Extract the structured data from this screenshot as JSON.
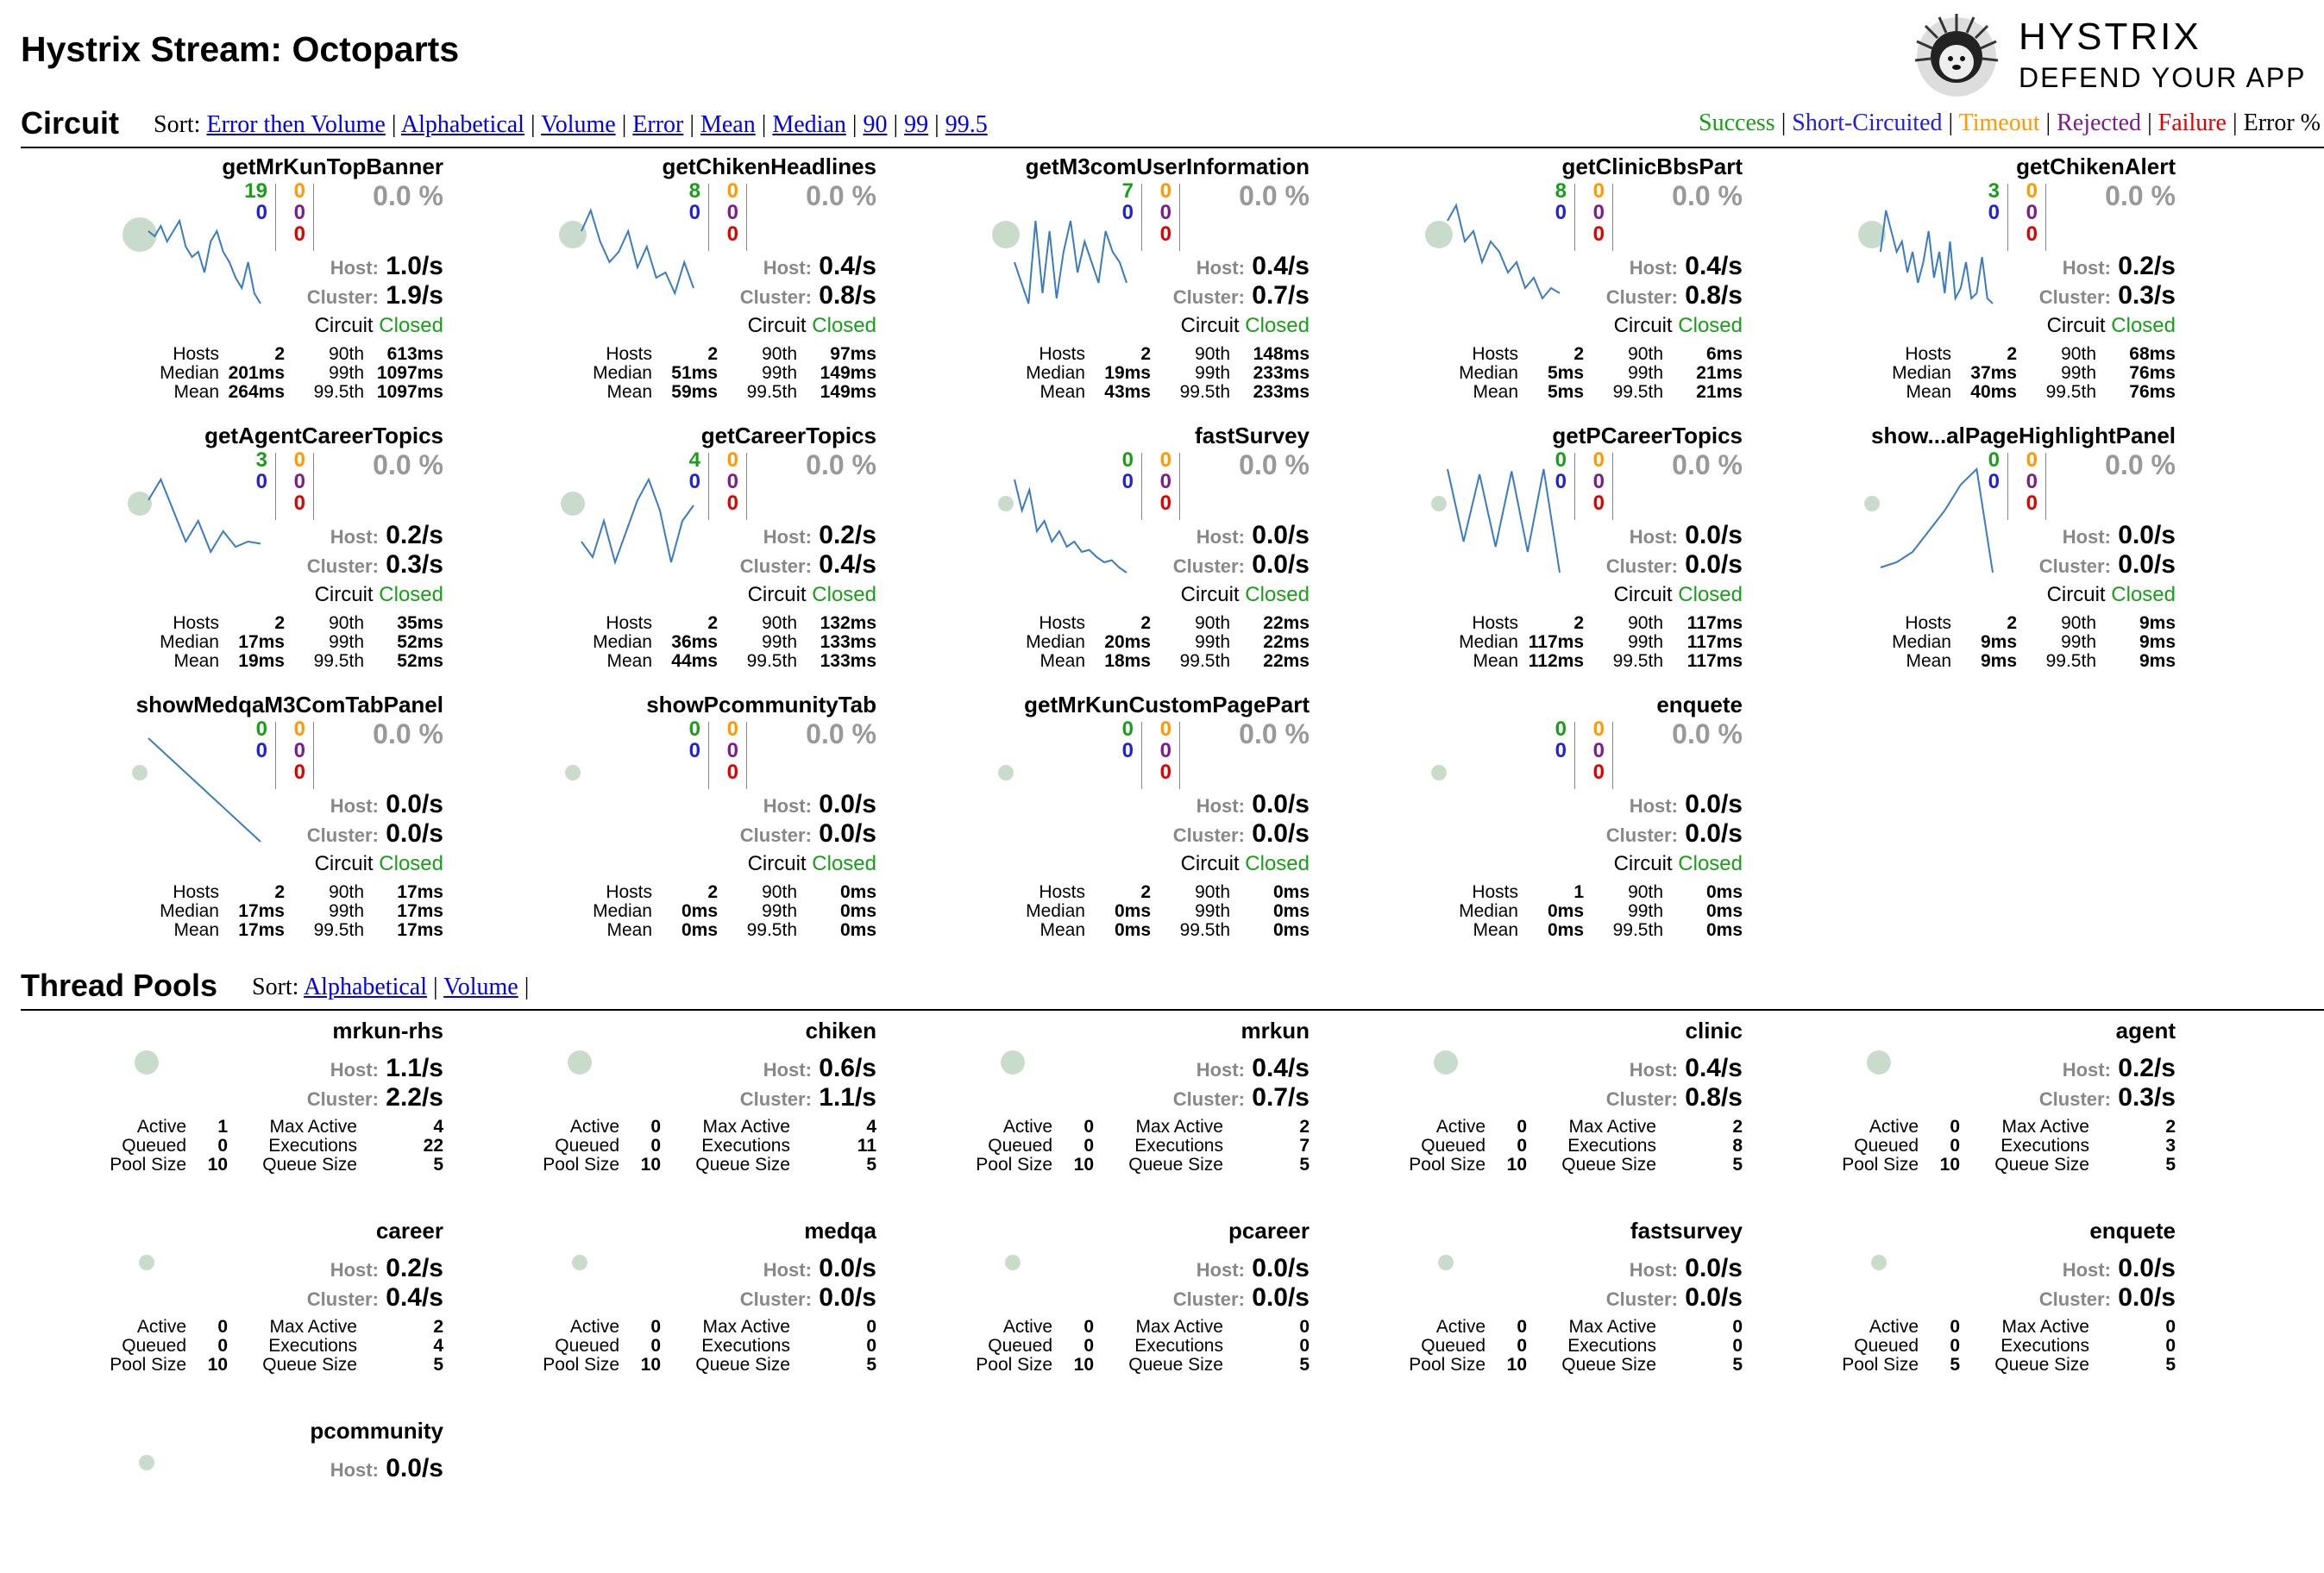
{
  "page_title": "Hystrix Stream: Octoparts",
  "logo": {
    "line1": "HYSTRIX",
    "line2": "DEFEND YOUR APP"
  },
  "circuit_section": {
    "heading": "Circuit",
    "sort_label": "Sort:",
    "sort_options": [
      "Error then Volume",
      "Alphabetical",
      "Volume",
      "Error",
      "Mean",
      "Median",
      "90",
      "99",
      "99.5"
    ],
    "legend": [
      {
        "label": "Success",
        "color": "#1a9e1a"
      },
      {
        "label": "Short-Circuited",
        "color": "#2020dd"
      },
      {
        "label": "Timeout",
        "color": "#ff9900"
      },
      {
        "label": "Rejected",
        "color": "#7b1e8c"
      },
      {
        "label": "Failure",
        "color": "#e00000"
      },
      {
        "label": "Error %",
        "color": "#000000"
      }
    ]
  },
  "labels": {
    "host": "Host:",
    "cluster": "Cluster:",
    "circuit": "Circuit",
    "hosts": "Hosts",
    "median": "Median",
    "mean": "Mean",
    "p90": "90th",
    "p99": "99th",
    "p995": "99.5th",
    "active": "Active",
    "queued": "Queued",
    "pool_size": "Pool Size",
    "max_active": "Max Active",
    "executions": "Executions",
    "queue_size": "Queue Size"
  },
  "circuits": [
    {
      "name": "getMrKunTopBanner",
      "success": "19",
      "short": "0",
      "timeout": "0",
      "rejected": "0",
      "failure": "0",
      "err": "0.0 %",
      "host": "1.0/s",
      "cluster": "1.9/s",
      "status": "Closed",
      "hosts": "2",
      "median": "201ms",
      "mean": "264ms",
      "p90": "613ms",
      "p99": "1097ms",
      "p995": "1097ms",
      "bubble": "large",
      "spark": [
        0.3,
        0.35,
        0.25,
        0.4,
        0.3,
        0.2,
        0.45,
        0.55,
        0.5,
        0.7,
        0.4,
        0.3,
        0.5,
        0.6,
        0.75,
        0.85,
        0.6,
        0.9,
        1.0
      ]
    },
    {
      "name": "getChikenHeadlines",
      "success": "8",
      "short": "0",
      "timeout": "0",
      "rejected": "0",
      "failure": "0",
      "err": "0.0 %",
      "host": "0.4/s",
      "cluster": "0.8/s",
      "status": "Closed",
      "hosts": "2",
      "median": "51ms",
      "mean": "59ms",
      "p90": "97ms",
      "p99": "149ms",
      "p995": "149ms",
      "bubble": "medium",
      "spark": [
        0.3,
        0.1,
        0.4,
        0.6,
        0.5,
        0.3,
        0.65,
        0.45,
        0.75,
        0.7,
        0.9,
        0.6,
        0.85
      ]
    },
    {
      "name": "getM3comUserInformation",
      "success": "7",
      "short": "0",
      "timeout": "0",
      "rejected": "0",
      "failure": "0",
      "err": "0.0 %",
      "host": "0.4/s",
      "cluster": "0.7/s",
      "status": "Closed",
      "hosts": "2",
      "median": "19ms",
      "mean": "43ms",
      "p90": "148ms",
      "p99": "233ms",
      "p995": "233ms",
      "bubble": "medium",
      "spark": [
        0.6,
        0.8,
        1.0,
        0.2,
        0.9,
        0.3,
        0.95,
        0.5,
        0.2,
        0.7,
        0.4,
        0.6,
        0.8,
        0.3,
        0.5,
        0.6,
        0.8
      ]
    },
    {
      "name": "getClinicBbsPart",
      "success": "8",
      "short": "0",
      "timeout": "0",
      "rejected": "0",
      "failure": "0",
      "err": "0.0 %",
      "host": "0.4/s",
      "cluster": "0.8/s",
      "status": "Closed",
      "hosts": "2",
      "median": "5ms",
      "mean": "5ms",
      "p90": "6ms",
      "p99": "21ms",
      "p995": "21ms",
      "bubble": "medium",
      "spark": [
        0.2,
        0.05,
        0.4,
        0.3,
        0.6,
        0.4,
        0.5,
        0.7,
        0.6,
        0.85,
        0.75,
        0.95,
        0.85,
        0.9
      ]
    },
    {
      "name": "getChikenAlert",
      "success": "3",
      "short": "0",
      "timeout": "0",
      "rejected": "0",
      "failure": "0",
      "err": "0.0 %",
      "host": "0.2/s",
      "cluster": "0.3/s",
      "status": "Closed",
      "hosts": "2",
      "median": "37ms",
      "mean": "40ms",
      "p90": "68ms",
      "p99": "76ms",
      "p995": "76ms",
      "bubble": "medium",
      "spark": [
        0.5,
        0.1,
        0.3,
        0.5,
        0.4,
        0.7,
        0.5,
        0.8,
        0.6,
        0.3,
        0.75,
        0.5,
        0.9,
        0.4,
        0.95,
        0.85,
        0.6,
        0.95,
        0.9,
        0.55,
        0.95,
        1.0
      ]
    },
    {
      "name": "getAgentCareerTopics",
      "success": "3",
      "short": "0",
      "timeout": "0",
      "rejected": "0",
      "failure": "0",
      "err": "0.0 %",
      "host": "0.2/s",
      "cluster": "0.3/s",
      "status": "Closed",
      "hosts": "2",
      "median": "17ms",
      "mean": "19ms",
      "p90": "35ms",
      "p99": "52ms",
      "p995": "52ms",
      "bubble": "small",
      "spark": [
        0.3,
        0.1,
        0.4,
        0.7,
        0.5,
        0.8,
        0.6,
        0.75,
        0.7,
        0.72
      ]
    },
    {
      "name": "getCareerTopics",
      "success": "4",
      "short": "0",
      "timeout": "0",
      "rejected": "0",
      "failure": "0",
      "err": "0.0 %",
      "host": "0.2/s",
      "cluster": "0.4/s",
      "status": "Closed",
      "hosts": "2",
      "median": "36ms",
      "mean": "44ms",
      "p90": "132ms",
      "p99": "133ms",
      "p995": "133ms",
      "bubble": "small",
      "spark": [
        0.7,
        0.85,
        0.5,
        0.9,
        0.6,
        0.3,
        0.1,
        0.4,
        0.9,
        0.5,
        0.35
      ]
    },
    {
      "name": "fastSurvey",
      "success": "0",
      "short": "0",
      "timeout": "0",
      "rejected": "0",
      "failure": "0",
      "err": "0.0 %",
      "host": "0.0/s",
      "cluster": "0.0/s",
      "status": "Closed",
      "hosts": "2",
      "median": "20ms",
      "mean": "18ms",
      "p90": "22ms",
      "p99": "22ms",
      "p995": "22ms",
      "bubble": "tiny",
      "spark": [
        0.1,
        0.4,
        0.2,
        0.6,
        0.5,
        0.7,
        0.6,
        0.75,
        0.7,
        0.8,
        0.78,
        0.85,
        0.9,
        0.88,
        0.95,
        1.0
      ]
    },
    {
      "name": "getPCareerTopics",
      "success": "0",
      "short": "0",
      "timeout": "0",
      "rejected": "0",
      "failure": "0",
      "err": "0.0 %",
      "host": "0.0/s",
      "cluster": "0.0/s",
      "status": "Closed",
      "hosts": "2",
      "median": "117ms",
      "mean": "112ms",
      "p90": "117ms",
      "p99": "117ms",
      "p995": "117ms",
      "bubble": "tiny",
      "spark": [
        0.0,
        0.7,
        0.05,
        0.75,
        0.02,
        0.8,
        0.0,
        1.0
      ]
    },
    {
      "name": "show...alPageHighlightPanel",
      "success": "0",
      "short": "0",
      "timeout": "0",
      "rejected": "0",
      "failure": "0",
      "err": "0.0 %",
      "host": "0.0/s",
      "cluster": "0.0/s",
      "status": "Closed",
      "hosts": "2",
      "median": "9ms",
      "mean": "9ms",
      "p90": "9ms",
      "p99": "9ms",
      "p995": "9ms",
      "bubble": "tiny",
      "spark": [
        0.95,
        0.9,
        0.8,
        0.6,
        0.4,
        0.15,
        0.0,
        1.0
      ]
    },
    {
      "name": "showMedqaM3ComTabPanel",
      "success": "0",
      "short": "0",
      "timeout": "0",
      "rejected": "0",
      "failure": "0",
      "err": "0.0 %",
      "host": "0.0/s",
      "cluster": "0.0/s",
      "status": "Closed",
      "hosts": "2",
      "median": "17ms",
      "mean": "17ms",
      "p90": "17ms",
      "p99": "17ms",
      "p995": "17ms",
      "bubble": "tiny",
      "spark": [
        0.0,
        1.0
      ]
    },
    {
      "name": "showPcommunityTab",
      "success": "0",
      "short": "0",
      "timeout": "0",
      "rejected": "0",
      "failure": "0",
      "err": "0.0 %",
      "host": "0.0/s",
      "cluster": "0.0/s",
      "status": "Closed",
      "hosts": "2",
      "median": "0ms",
      "mean": "0ms",
      "p90": "0ms",
      "p99": "0ms",
      "p995": "0ms",
      "bubble": "tiny",
      "spark": []
    },
    {
      "name": "getMrKunCustomPagePart",
      "success": "0",
      "short": "0",
      "timeout": "0",
      "rejected": "0",
      "failure": "0",
      "err": "0.0 %",
      "host": "0.0/s",
      "cluster": "0.0/s",
      "status": "Closed",
      "hosts": "2",
      "median": "0ms",
      "mean": "0ms",
      "p90": "0ms",
      "p99": "0ms",
      "p995": "0ms",
      "bubble": "tiny",
      "spark": []
    },
    {
      "name": "enquete",
      "success": "0",
      "short": "0",
      "timeout": "0",
      "rejected": "0",
      "failure": "0",
      "err": "0.0 %",
      "host": "0.0/s",
      "cluster": "0.0/s",
      "status": "Closed",
      "hosts": "1",
      "median": "0ms",
      "mean": "0ms",
      "p90": "0ms",
      "p99": "0ms",
      "p995": "0ms",
      "bubble": "tiny",
      "spark": []
    }
  ],
  "thread_section": {
    "heading": "Thread Pools",
    "sort_label": "Sort:",
    "sort_options": [
      "Alphabetical",
      "Volume"
    ]
  },
  "pools": [
    {
      "name": "mrkun-rhs",
      "host": "1.1/s",
      "cluster": "2.2/s",
      "active": "1",
      "queued": "0",
      "pool_size": "10",
      "max_active": "4",
      "executions": "22",
      "queue_size": "5",
      "bubble": "small"
    },
    {
      "name": "chiken",
      "host": "0.6/s",
      "cluster": "1.1/s",
      "active": "0",
      "queued": "0",
      "pool_size": "10",
      "max_active": "4",
      "executions": "11",
      "queue_size": "5",
      "bubble": "small"
    },
    {
      "name": "mrkun",
      "host": "0.4/s",
      "cluster": "0.7/s",
      "active": "0",
      "queued": "0",
      "pool_size": "10",
      "max_active": "2",
      "executions": "7",
      "queue_size": "5",
      "bubble": "small"
    },
    {
      "name": "clinic",
      "host": "0.4/s",
      "cluster": "0.8/s",
      "active": "0",
      "queued": "0",
      "pool_size": "10",
      "max_active": "2",
      "executions": "8",
      "queue_size": "5",
      "bubble": "small"
    },
    {
      "name": "agent",
      "host": "0.2/s",
      "cluster": "0.3/s",
      "active": "0",
      "queued": "0",
      "pool_size": "10",
      "max_active": "2",
      "executions": "3",
      "queue_size": "5",
      "bubble": "small"
    },
    {
      "name": "career",
      "host": "0.2/s",
      "cluster": "0.4/s",
      "active": "0",
      "queued": "0",
      "pool_size": "10",
      "max_active": "2",
      "executions": "4",
      "queue_size": "5",
      "bubble": "tiny"
    },
    {
      "name": "medqa",
      "host": "0.0/s",
      "cluster": "0.0/s",
      "active": "0",
      "queued": "0",
      "pool_size": "10",
      "max_active": "0",
      "executions": "0",
      "queue_size": "5",
      "bubble": "tiny"
    },
    {
      "name": "pcareer",
      "host": "0.0/s",
      "cluster": "0.0/s",
      "active": "0",
      "queued": "0",
      "pool_size": "10",
      "max_active": "0",
      "executions": "0",
      "queue_size": "5",
      "bubble": "tiny"
    },
    {
      "name": "fastsurvey",
      "host": "0.0/s",
      "cluster": "0.0/s",
      "active": "0",
      "queued": "0",
      "pool_size": "10",
      "max_active": "0",
      "executions": "0",
      "queue_size": "5",
      "bubble": "tiny"
    },
    {
      "name": "enquete",
      "host": "0.0/s",
      "cluster": "0.0/s",
      "active": "0",
      "queued": "0",
      "pool_size": "5",
      "max_active": "0",
      "executions": "0",
      "queue_size": "5",
      "bubble": "tiny"
    },
    {
      "name": "pcommunity",
      "host": "0.0/s",
      "cluster": "",
      "active": "",
      "queued": "",
      "pool_size": "",
      "max_active": "",
      "executions": "",
      "queue_size": "",
      "bubble": "tiny"
    }
  ]
}
